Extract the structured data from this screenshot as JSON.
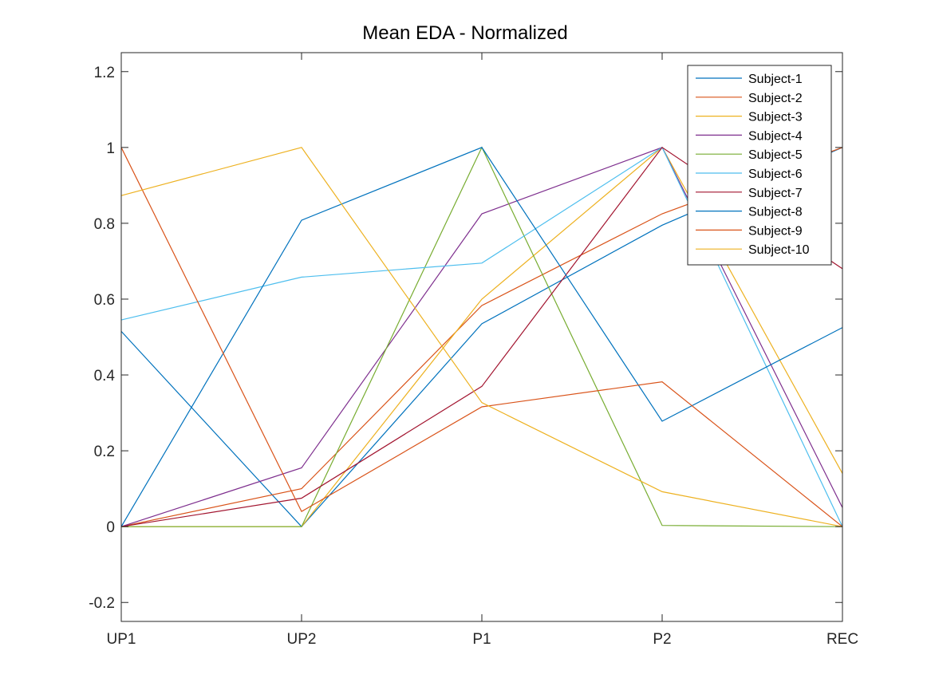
{
  "chart_data": {
    "type": "line",
    "title": "Mean EDA - Normalized",
    "xlabel": "",
    "ylabel": "",
    "categories": [
      "UP1",
      "UP2",
      "P1",
      "P2",
      "REC"
    ],
    "ylim": [
      -0.25,
      1.25
    ],
    "yticks": [
      -0.2,
      0,
      0.2,
      0.4,
      0.6,
      0.8,
      1,
      1.2
    ],
    "ytick_labels": [
      "-0.2",
      "0",
      "0.2",
      "0.4",
      "0.6",
      "0.8",
      "1",
      "1.2"
    ],
    "grid": false,
    "legend_position": "top-right",
    "series": [
      {
        "name": "Subject-1",
        "color": "#0072BD",
        "values": [
          0.515,
          0.0,
          0.535,
          0.795,
          1.0
        ]
      },
      {
        "name": "Subject-2",
        "color": "#D95319",
        "values": [
          0.0,
          0.1,
          0.583,
          0.825,
          1.0
        ]
      },
      {
        "name": "Subject-3",
        "color": "#EDB120",
        "values": [
          0.0,
          0.0,
          0.6,
          1.0,
          0.14
        ]
      },
      {
        "name": "Subject-4",
        "color": "#7E2F8E",
        "values": [
          0.0,
          0.155,
          0.825,
          1.0,
          0.05
        ]
      },
      {
        "name": "Subject-5",
        "color": "#77AC30",
        "values": [
          0.0,
          0.0,
          1.0,
          0.003,
          0.0
        ]
      },
      {
        "name": "Subject-6",
        "color": "#4DBEEE",
        "values": [
          0.545,
          0.658,
          0.695,
          1.0,
          0.0
        ]
      },
      {
        "name": "Subject-7",
        "color": "#A2142F",
        "values": [
          0.0,
          0.075,
          0.37,
          1.0,
          0.68
        ]
      },
      {
        "name": "Subject-8",
        "color": "#0072BD",
        "values": [
          0.0,
          0.808,
          1.0,
          0.278,
          0.525
        ]
      },
      {
        "name": "Subject-9",
        "color": "#D95319",
        "values": [
          1.0,
          0.04,
          0.316,
          0.382,
          0.0
        ]
      },
      {
        "name": "Subject-10",
        "color": "#EDB120",
        "values": [
          0.873,
          1.0,
          0.327,
          0.092,
          0.0
        ]
      }
    ]
  }
}
